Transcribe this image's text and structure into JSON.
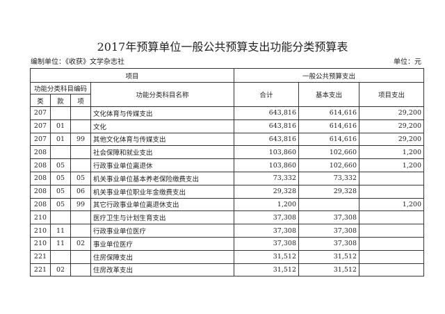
{
  "title": "2017年预算单位一般公共预算支出功能分类预算表",
  "org": "编制单位：《收获》文学杂志社",
  "unit": "单位：元",
  "header": {
    "item": "项目",
    "general": "一般公共预算支出",
    "code": "功能分类科目编码",
    "name": "功能分类科目名称",
    "lei": "类",
    "kuan": "款",
    "xiang": "项",
    "total": "合计",
    "basic": "基本支出",
    "project": "项目支出"
  },
  "rows": [
    {
      "lei": "207",
      "kuan": "",
      "xiang": "",
      "name": "文化体育与传媒支出",
      "total": "643,816",
      "basic": "614,616",
      "project": "29,200"
    },
    {
      "lei": "207",
      "kuan": "01",
      "xiang": "",
      "name": "文化",
      "total": "643,816",
      "basic": "614,616",
      "project": "29,200"
    },
    {
      "lei": "207",
      "kuan": "01",
      "xiang": "99",
      "name": "其他文化体育与传媒支出",
      "total": "643,816",
      "basic": "614,616",
      "project": "29,200"
    },
    {
      "lei": "208",
      "kuan": "",
      "xiang": "",
      "name": "社会保障和就业支出",
      "total": "103,860",
      "basic": "102,660",
      "project": "1,200"
    },
    {
      "lei": "208",
      "kuan": "05",
      "xiang": "",
      "name": "行政事业单位离退休",
      "total": "103,860",
      "basic": "102,660",
      "project": "1,200"
    },
    {
      "lei": "208",
      "kuan": "05",
      "xiang": "05",
      "name": "机关事业单位基本养老保险缴费支出",
      "total": "73,332",
      "basic": "73,332",
      "project": ""
    },
    {
      "lei": "208",
      "kuan": "05",
      "xiang": "06",
      "name": "机关事业单位职业年金缴费支出",
      "total": "29,328",
      "basic": "29,328",
      "project": ""
    },
    {
      "lei": "208",
      "kuan": "05",
      "xiang": "99",
      "name": "其它行政事业单位离退休支出",
      "total": "1,200",
      "basic": "",
      "project": "1,200"
    },
    {
      "lei": "210",
      "kuan": "",
      "xiang": "",
      "name": "医疗卫生与计划生育支出",
      "total": "37,308",
      "basic": "37,308",
      "project": ""
    },
    {
      "lei": "210",
      "kuan": "11",
      "xiang": "",
      "name": "行政事业单位医疗",
      "total": "37,308",
      "basic": "37,308",
      "project": ""
    },
    {
      "lei": "210",
      "kuan": "11",
      "xiang": "02",
      "name": "事业单位医疗",
      "total": "37,308",
      "basic": "37,308",
      "project": ""
    },
    {
      "lei": "221",
      "kuan": "",
      "xiang": "",
      "name": "住房保障支出",
      "total": "31,512",
      "basic": "31,512",
      "project": ""
    },
    {
      "lei": "221",
      "kuan": "02",
      "xiang": "",
      "name": "住房改革支出",
      "total": "31,512",
      "basic": "31,512",
      "project": ""
    }
  ]
}
